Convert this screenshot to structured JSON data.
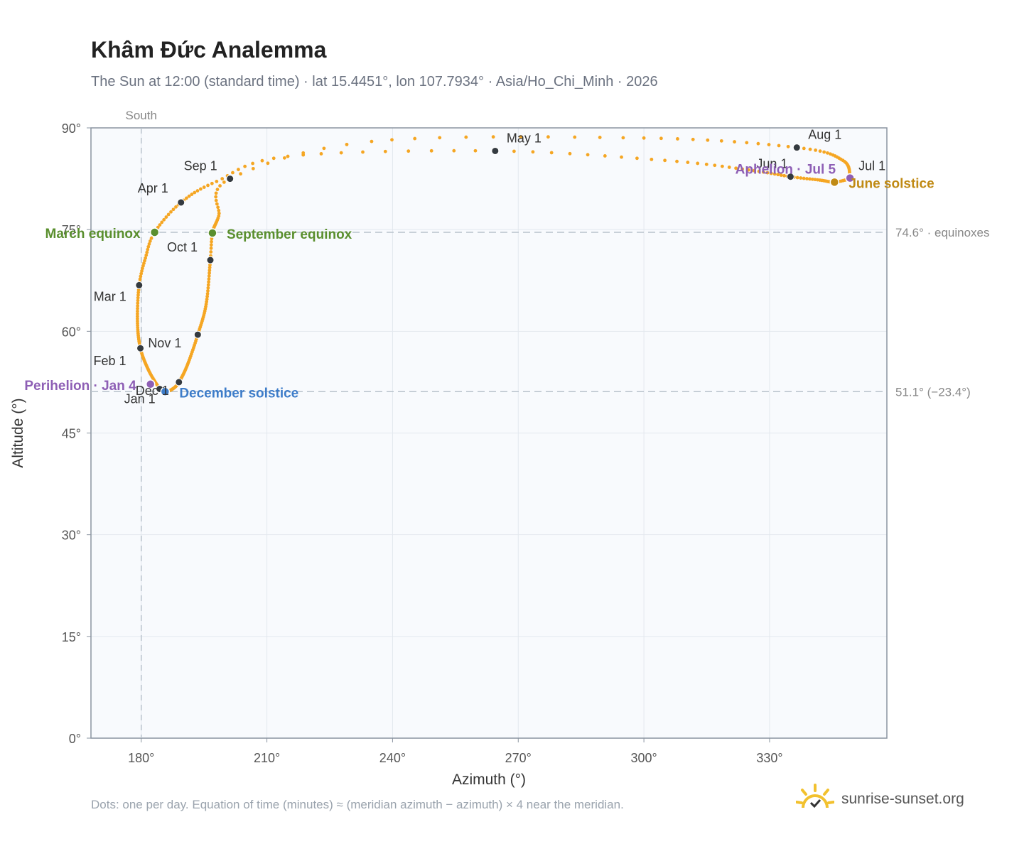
{
  "header": {
    "title": "Khâm Đức Analemma",
    "subtitle": "The Sun at 12:00 (standard time) · lat 15.4451°, lon 107.7934° · Asia/Ho_Chi_Minh · 2026"
  },
  "footer": {
    "note": "Dots: one per day. Equation of time (minutes) ≈ (meridian azimuth − azimuth) × 4 near the meridian.",
    "brand": "sunrise-sunset.org"
  },
  "colors": {
    "path": "#f5a623",
    "month_dot": "#343a40",
    "equinox": "#5a8f2e",
    "june_solstice": "#c08a14",
    "december_solstice": "#3d7cc9",
    "apsis": "#8e5fb5",
    "plot_bg": "#f8fafd",
    "grid": "#e3e8ee",
    "reference_line": "#b8c2cc",
    "logo": "#f2c12e"
  },
  "chart_data": {
    "type": "scatter",
    "xlabel": "Azimuth (°)",
    "ylabel": "Altitude (°)",
    "xlim": [
      168,
      358
    ],
    "ylim": [
      0,
      90
    ],
    "xticks": [
      180,
      210,
      240,
      270,
      300,
      330
    ],
    "xtick_labels": [
      "180°",
      "210°",
      "240°",
      "270°",
      "300°",
      "330°"
    ],
    "yticks": [
      0,
      15,
      30,
      45,
      60,
      75,
      90
    ],
    "ytick_labels": [
      "0°",
      "15°",
      "30°",
      "45°",
      "60°",
      "75°",
      "90°"
    ],
    "grid": true,
    "meridian": {
      "azimuth": 180,
      "label": "South"
    },
    "reference_lines": [
      {
        "altitude": 74.6,
        "label": "74.6° · equinoxes"
      },
      {
        "altitude": 51.1,
        "label": "51.1° (−23.4°)"
      }
    ],
    "path_anchors": [
      {
        "day": 1,
        "az": 184.4,
        "alt": 51.5
      },
      {
        "day": 15,
        "az": 181.8,
        "alt": 54.2
      },
      {
        "day": 32,
        "az": 179.8,
        "alt": 57.5
      },
      {
        "day": 46,
        "az": 179.1,
        "alt": 61.5
      },
      {
        "day": 60,
        "az": 179.5,
        "alt": 66.8
      },
      {
        "day": 70,
        "az": 181.0,
        "alt": 70.8
      },
      {
        "day": 79,
        "az": 183.2,
        "alt": 74.6
      },
      {
        "day": 91,
        "az": 189.5,
        "alt": 79.0
      },
      {
        "day": 102,
        "az": 198.0,
        "alt": 82.1
      },
      {
        "day": 111,
        "az": 215.0,
        "alt": 85.8
      },
      {
        "day": 121,
        "az": 264.5,
        "alt": 86.6
      },
      {
        "day": 131,
        "az": 305.0,
        "alt": 85.2
      },
      {
        "day": 141,
        "az": 325.0,
        "alt": 83.8
      },
      {
        "day": 152,
        "az": 335.0,
        "alt": 82.8
      },
      {
        "day": 162,
        "az": 342.0,
        "alt": 82.3
      },
      {
        "day": 172,
        "az": 345.5,
        "alt": 82.0
      },
      {
        "day": 182,
        "az": 349.2,
        "alt": 82.5
      },
      {
        "day": 186,
        "az": 349.2,
        "alt": 82.6
      },
      {
        "day": 200,
        "az": 347.5,
        "alt": 85.2
      },
      {
        "day": 213,
        "az": 336.5,
        "alt": 87.1
      },
      {
        "day": 225,
        "az": 300.0,
        "alt": 88.5
      },
      {
        "day": 236,
        "az": 235.0,
        "alt": 88.0
      },
      {
        "day": 244,
        "az": 201.2,
        "alt": 82.5
      },
      {
        "day": 255,
        "az": 198.5,
        "alt": 77.0
      },
      {
        "day": 266,
        "az": 197.0,
        "alt": 74.5
      },
      {
        "day": 274,
        "az": 196.5,
        "alt": 70.5
      },
      {
        "day": 290,
        "az": 195.5,
        "alt": 64.0
      },
      {
        "day": 305,
        "az": 193.5,
        "alt": 59.5
      },
      {
        "day": 320,
        "az": 191.0,
        "alt": 55.0
      },
      {
        "day": 335,
        "az": 189.0,
        "alt": 52.5
      },
      {
        "day": 345,
        "az": 187.5,
        "alt": 51.5
      },
      {
        "day": 355,
        "az": 185.7,
        "alt": 51.1
      },
      {
        "day": 366,
        "az": 184.4,
        "alt": 51.5
      }
    ],
    "months": [
      {
        "label": "Jan 1",
        "az": 184.4,
        "alt": 51.5
      },
      {
        "label": "Feb 1",
        "az": 179.8,
        "alt": 57.5
      },
      {
        "label": "Mar 1",
        "az": 179.5,
        "alt": 66.8
      },
      {
        "label": "Apr 1",
        "az": 189.5,
        "alt": 79.0
      },
      {
        "label": "May 1",
        "az": 264.5,
        "alt": 86.6
      },
      {
        "label": "Jun 1",
        "az": 335.0,
        "alt": 82.8
      },
      {
        "label": "Jul 1",
        "az": 349.2,
        "alt": 82.5
      },
      {
        "label": "Aug 1",
        "az": 336.5,
        "alt": 87.1
      },
      {
        "label": "Sep 1",
        "az": 201.2,
        "alt": 82.5
      },
      {
        "label": "Oct 1",
        "az": 196.5,
        "alt": 70.5
      },
      {
        "label": "Nov 1",
        "az": 193.5,
        "alt": 59.5
      },
      {
        "label": "Dec 1",
        "az": 189.0,
        "alt": 52.5
      }
    ],
    "events": [
      {
        "label": "March equinox",
        "az": 183.2,
        "alt": 74.6,
        "color": "#5a8f2e"
      },
      {
        "label": "September equinox",
        "az": 197.0,
        "alt": 74.5,
        "color": "#5a8f2e"
      },
      {
        "label": "June solstice",
        "az": 345.5,
        "alt": 82.0,
        "color": "#c08a14"
      },
      {
        "label": "December solstice",
        "az": 185.7,
        "alt": 51.1,
        "color": "#3d7cc9"
      },
      {
        "label": "Perihelion · Jan 4",
        "az": 182.2,
        "alt": 52.2,
        "color": "#8e5fb5"
      },
      {
        "label": "Aphelion · Jul 5",
        "az": 349.2,
        "alt": 82.6,
        "color": "#8e5fb5"
      }
    ]
  }
}
